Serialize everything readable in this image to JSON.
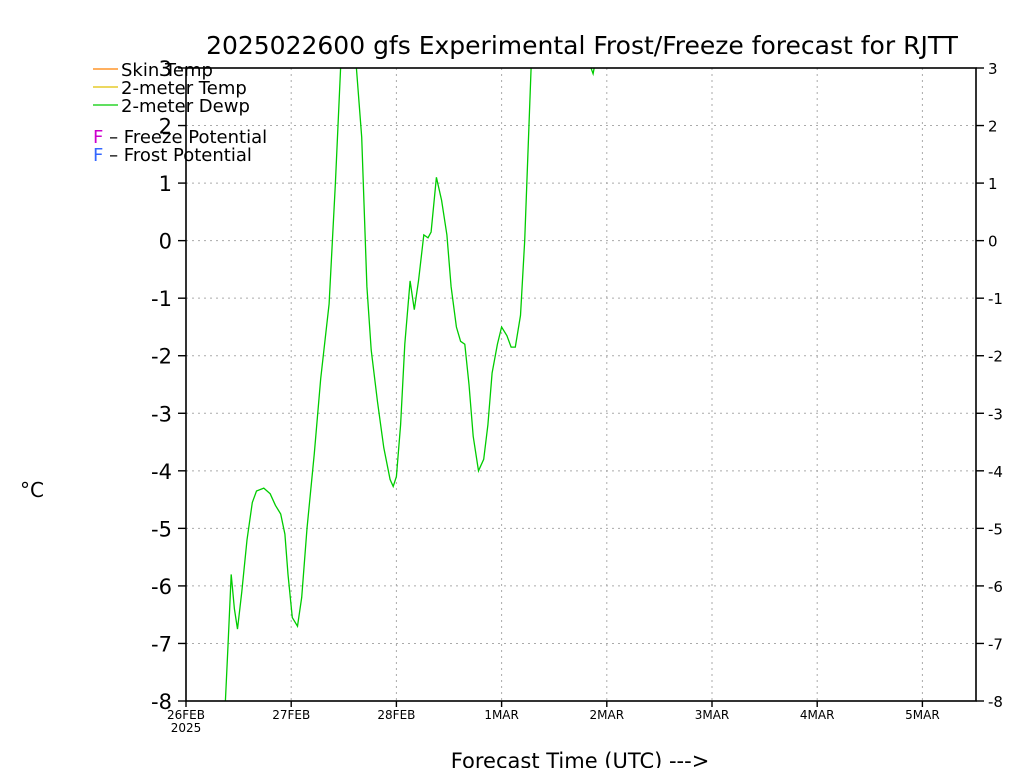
{
  "chart_data": {
    "type": "line",
    "title": "2025022600 gfs Experimental Frost/Freeze forecast for RJTT",
    "ylabel": "°C",
    "xlabel": "Forecast Time (UTC) --->",
    "ylim": [
      -8,
      3
    ],
    "xlim_days": [
      0,
      7.7
    ],
    "yticks": [
      "-8",
      "-7",
      "-6",
      "-5",
      "-4",
      "-3",
      "-2",
      "-1",
      "0",
      "1",
      "2",
      "3"
    ],
    "xticks": [
      {
        "day": 0,
        "label": "26FEB",
        "sub": "2025"
      },
      {
        "day": 1,
        "label": "27FEB",
        "sub": ""
      },
      {
        "day": 2,
        "label": "28FEB",
        "sub": ""
      },
      {
        "day": 3,
        "label": "1MAR",
        "sub": ""
      },
      {
        "day": 4,
        "label": "2MAR",
        "sub": ""
      },
      {
        "day": 5,
        "label": "3MAR",
        "sub": ""
      },
      {
        "day": 6,
        "label": "4MAR",
        "sub": ""
      },
      {
        "day": 7,
        "label": "5MAR",
        "sub": ""
      }
    ],
    "grid": true,
    "legend": [
      {
        "name": "Skin Temp",
        "color": "#ff8000"
      },
      {
        "name": "2-meter Temp",
        "color": "#e0c000"
      },
      {
        "name": "2-meter Dewp",
        "color": "#00cc00"
      }
    ],
    "potential_legend": [
      {
        "marker": "F",
        "text": "– Freeze Potential",
        "color": "#cc00cc"
      },
      {
        "marker": "F",
        "text": "– Frost Potential",
        "color": "#3366ff"
      }
    ],
    "series": [
      {
        "name": "2-meter Dewp",
        "color": "#00cc00",
        "points": [
          [
            0.375,
            -8.0
          ],
          [
            0.4,
            -7.0
          ],
          [
            0.43,
            -5.8
          ],
          [
            0.46,
            -6.4
          ],
          [
            0.49,
            -6.75
          ],
          [
            0.53,
            -6.1
          ],
          [
            0.58,
            -5.2
          ],
          [
            0.63,
            -4.55
          ],
          [
            0.67,
            -4.35
          ],
          [
            0.74,
            -4.3
          ],
          [
            0.8,
            -4.4
          ],
          [
            0.85,
            -4.6
          ],
          [
            0.9,
            -4.75
          ],
          [
            0.94,
            -5.1
          ],
          [
            0.97,
            -5.8
          ],
          [
            1.01,
            -6.55
          ],
          [
            1.06,
            -6.7
          ],
          [
            1.1,
            -6.2
          ],
          [
            1.15,
            -5.0
          ],
          [
            1.22,
            -3.7
          ],
          [
            1.28,
            -2.4
          ],
          [
            1.36,
            -1.1
          ],
          [
            1.42,
            1.0
          ],
          [
            1.47,
            3.0
          ],
          [
            1.53,
            3.5
          ],
          [
            1.57,
            3.5
          ],
          [
            1.62,
            3.0
          ],
          [
            1.67,
            1.8
          ],
          [
            1.72,
            -0.8
          ],
          [
            1.76,
            -1.9
          ],
          [
            1.82,
            -2.8
          ],
          [
            1.88,
            -3.6
          ],
          [
            1.94,
            -4.15
          ],
          [
            1.97,
            -4.27
          ],
          [
            2.0,
            -4.1
          ],
          [
            2.04,
            -3.2
          ],
          [
            2.08,
            -1.8
          ],
          [
            2.13,
            -0.7
          ],
          [
            2.17,
            -1.2
          ],
          [
            2.21,
            -0.7
          ],
          [
            2.26,
            0.1
          ],
          [
            2.3,
            0.05
          ],
          [
            2.33,
            0.15
          ],
          [
            2.38,
            1.1
          ],
          [
            2.43,
            0.7
          ],
          [
            2.48,
            0.1
          ],
          [
            2.52,
            -0.8
          ],
          [
            2.57,
            -1.5
          ],
          [
            2.61,
            -1.75
          ],
          [
            2.65,
            -1.8
          ],
          [
            2.69,
            -2.5
          ],
          [
            2.73,
            -3.4
          ],
          [
            2.78,
            -4.0
          ],
          [
            2.83,
            -3.8
          ],
          [
            2.87,
            -3.2
          ],
          [
            2.91,
            -2.3
          ],
          [
            2.96,
            -1.8
          ],
          [
            3.0,
            -1.5
          ],
          [
            3.05,
            -1.65
          ],
          [
            3.09,
            -1.85
          ],
          [
            3.13,
            -1.85
          ],
          [
            3.18,
            -1.3
          ],
          [
            3.22,
            0.0
          ],
          [
            3.25,
            1.5
          ],
          [
            3.28,
            3.0
          ],
          [
            3.31,
            3.5
          ],
          [
            3.82,
            3.5
          ],
          [
            3.85,
            3.0
          ],
          [
            3.87,
            2.9
          ],
          [
            3.9,
            3.2
          ],
          [
            3.93,
            3.5
          ]
        ]
      }
    ]
  }
}
